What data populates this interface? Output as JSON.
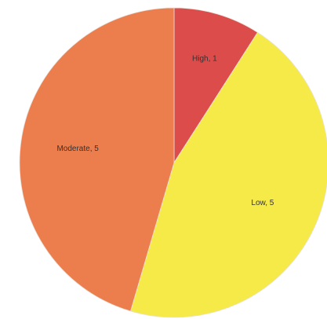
{
  "chart_data": {
    "type": "pie",
    "categories": [
      "High",
      "Low",
      "Moderate"
    ],
    "values": [
      1,
      5,
      5
    ],
    "value_labels": [
      "High, 1",
      "Low, 5",
      "Moderate, 5"
    ],
    "colors": [
      "#dc4c4a",
      "#f6ea48",
      "#ec7d4d"
    ]
  }
}
